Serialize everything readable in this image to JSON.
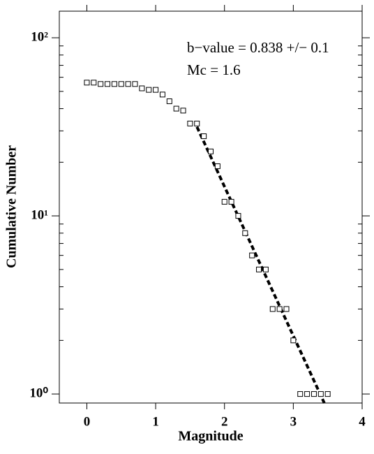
{
  "chart_data": {
    "type": "scatter",
    "xlabel": "Magnitude",
    "ylabel": "Cumulative Number",
    "annotations": [
      "b−value = 0.838 +/− 0.1",
      "Mc = 1.6"
    ],
    "x": [
      0,
      0.1,
      0.2,
      0.3,
      0.4,
      0.5,
      0.6,
      0.7,
      0.8,
      0.9,
      1.0,
      1.1,
      1.2,
      1.3,
      1.4,
      1.5,
      1.6,
      1.7,
      1.8,
      1.9,
      2.0,
      2.1,
      2.2,
      2.3,
      2.4,
      2.5,
      2.6,
      2.7,
      2.8,
      2.9,
      3.0,
      3.1,
      3.2,
      3.3,
      3.4,
      3.5
    ],
    "values": [
      56,
      56,
      55,
      55,
      55,
      55,
      55,
      55,
      52,
      51,
      51,
      48,
      44,
      40,
      39,
      33,
      33,
      28,
      23,
      19,
      12,
      12,
      10,
      8,
      6,
      5,
      5,
      3,
      3,
      3,
      2,
      1,
      1,
      1,
      1,
      1
    ],
    "fit_line": {
      "x": [
        1.6,
        3.45
      ],
      "y": [
        31.6,
        0.89
      ]
    },
    "log_y": true,
    "xlim": [
      -0.4,
      4
    ],
    "ylim": [
      0.89,
      141
    ],
    "xticks": [
      0,
      1,
      2,
      3,
      4
    ],
    "yticks": [
      {
        "value": 1,
        "label": "10⁰"
      },
      {
        "value": 10,
        "label": "10¹"
      },
      {
        "value": 100,
        "label": "10²"
      }
    ],
    "yminor_ticks": [
      2,
      3,
      4,
      5,
      6,
      7,
      8,
      9,
      20,
      30,
      40,
      50,
      60,
      70,
      80,
      90
    ]
  }
}
